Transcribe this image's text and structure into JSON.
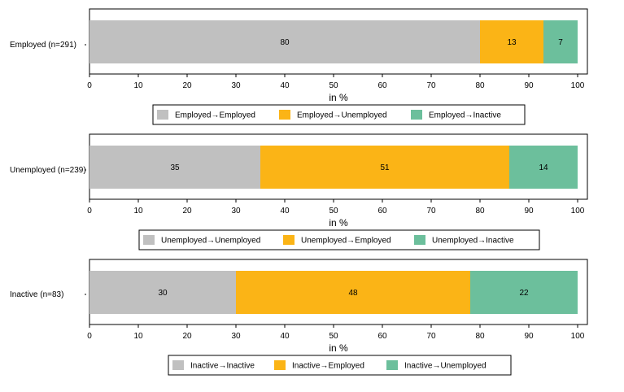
{
  "chart_data": [
    {
      "type": "bar",
      "orientation": "horizontal",
      "stacked": true,
      "categories": [
        "Employed (n=291)"
      ],
      "series": [
        {
          "name": "Employed→Employed",
          "values": [
            80
          ],
          "color": "#c0c0c0"
        },
        {
          "name": "Employed→Unemployed",
          "values": [
            13
          ],
          "color": "#fbb416"
        },
        {
          "name": "Employed→Inactive",
          "values": [
            7
          ],
          "color": "#6cbf9c"
        }
      ],
      "data_labels": [
        "80",
        "13",
        "7"
      ],
      "xlabel": "in %",
      "xlim": [
        0,
        100
      ],
      "xticks": [
        "0",
        "10",
        "20",
        "30",
        "40",
        "50",
        "60",
        "70",
        "80",
        "90",
        "100"
      ],
      "legend": "bottom",
      "grid": false
    },
    {
      "type": "bar",
      "orientation": "horizontal",
      "stacked": true,
      "categories": [
        "Unemployed (n=239)"
      ],
      "series": [
        {
          "name": "Unemployed→Unemployed",
          "values": [
            35
          ],
          "color": "#c0c0c0"
        },
        {
          "name": "Unemployed→Employed",
          "values": [
            51
          ],
          "color": "#fbb416"
        },
        {
          "name": "Unemployed→Inactive",
          "values": [
            14
          ],
          "color": "#6cbf9c"
        }
      ],
      "data_labels": [
        "35",
        "51",
        "14"
      ],
      "xlabel": "in %",
      "xlim": [
        0,
        100
      ],
      "xticks": [
        "0",
        "10",
        "20",
        "30",
        "40",
        "50",
        "60",
        "70",
        "80",
        "90",
        "100"
      ],
      "legend": "bottom",
      "grid": false
    },
    {
      "type": "bar",
      "orientation": "horizontal",
      "stacked": true,
      "categories": [
        "Inactive (n=83)"
      ],
      "series": [
        {
          "name": "Inactive→Inactive",
          "values": [
            30
          ],
          "color": "#c0c0c0"
        },
        {
          "name": "Inactive→Employed",
          "values": [
            48
          ],
          "color": "#fbb416"
        },
        {
          "name": "Inactive→Unemployed",
          "values": [
            22
          ],
          "color": "#6cbf9c"
        }
      ],
      "data_labels": [
        "30",
        "48",
        "22"
      ],
      "xlabel": "in %",
      "xlim": [
        0,
        100
      ],
      "xticks": [
        "0",
        "10",
        "20",
        "30",
        "40",
        "50",
        "60",
        "70",
        "80",
        "90",
        "100"
      ],
      "legend": "bottom",
      "grid": false
    }
  ]
}
